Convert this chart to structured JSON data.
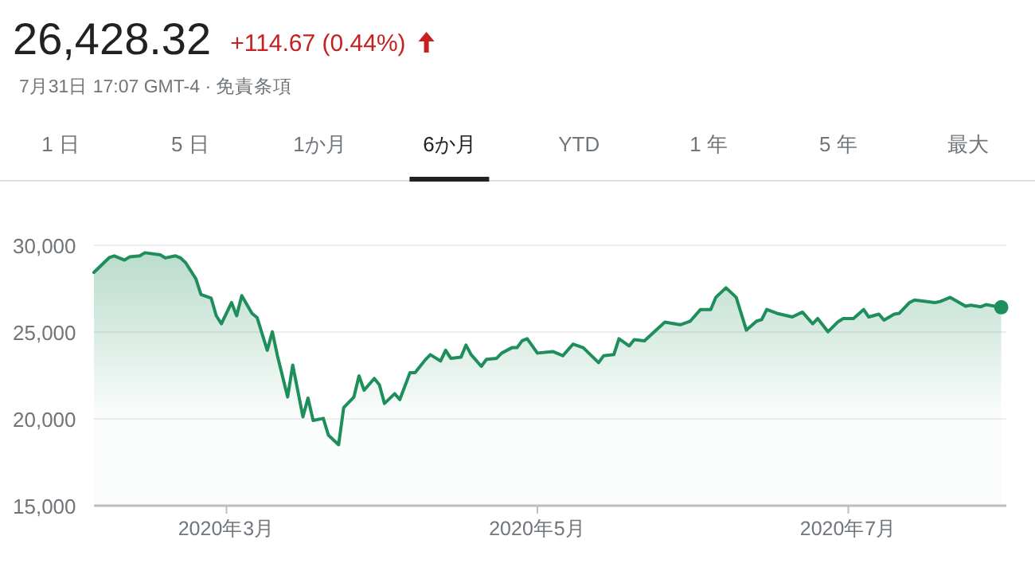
{
  "chart_data": {
    "type": "area",
    "title": "26,428.32",
    "subtitle": "+114.67 (0.44%)",
    "annotations": [
      "7月31日 17:07 GMT-4 · 免責条項",
      "1 日",
      "5 日",
      "1か月",
      "6か月",
      "YTD",
      "1 年",
      "5 年",
      "最大"
    ],
    "x": [
      "2020-02-04",
      "2020-02-07",
      "2020-02-08",
      "2020-02-10",
      "2020-02-11",
      "2020-02-13",
      "2020-02-14",
      "2020-02-17",
      "2020-02-18",
      "2020-02-20",
      "2020-02-21",
      "2020-02-22",
      "2020-02-24",
      "2020-02-25",
      "2020-02-27",
      "2020-02-28",
      "2020-02-29",
      "2020-03-02",
      "2020-03-03",
      "2020-03-04",
      "2020-03-06",
      "2020-03-07",
      "2020-03-09",
      "2020-03-10",
      "2020-03-11",
      "2020-03-13",
      "2020-03-14",
      "2020-03-16",
      "2020-03-17",
      "2020-03-18",
      "2020-03-20",
      "2020-03-21",
      "2020-03-23",
      "2020-03-24",
      "2020-03-26",
      "2020-03-27",
      "2020-03-28",
      "2020-03-30",
      "2020-03-31",
      "2020-04-01",
      "2020-04-03",
      "2020-04-04",
      "2020-04-06",
      "2020-04-07",
      "2020-04-09",
      "2020-04-10",
      "2020-04-12",
      "2020-04-13",
      "2020-04-14",
      "2020-04-16",
      "2020-04-17",
      "2020-04-18",
      "2020-04-20",
      "2020-04-21",
      "2020-04-23",
      "2020-04-24",
      "2020-04-26",
      "2020-04-27",
      "2020-04-28",
      "2020-04-29",
      "2020-05-01",
      "2020-05-04",
      "2020-05-06",
      "2020-05-08",
      "2020-05-10",
      "2020-05-13",
      "2020-05-14",
      "2020-05-16",
      "2020-05-17",
      "2020-05-19",
      "2020-05-20",
      "2020-05-22",
      "2020-05-26",
      "2020-05-29",
      "2020-05-31",
      "2020-06-02",
      "2020-06-04",
      "2020-06-05",
      "2020-06-07",
      "2020-06-09",
      "2020-06-11",
      "2020-06-13",
      "2020-06-14",
      "2020-06-15",
      "2020-06-17",
      "2020-06-20",
      "2020-06-22",
      "2020-06-24",
      "2020-06-25",
      "2020-06-27",
      "2020-06-29",
      "2020-06-30",
      "2020-07-02",
      "2020-07-04",
      "2020-07-05",
      "2020-07-07",
      "2020-07-08",
      "2020-07-10",
      "2020-07-11",
      "2020-07-13",
      "2020-07-14",
      "2020-07-18",
      "2020-07-19",
      "2020-07-21",
      "2020-07-24",
      "2020-07-25",
      "2020-07-27",
      "2020-07-28",
      "2020-07-31"
    ],
    "series": [
      {
        "color": "#1e8e5a",
        "values": [
          28440,
          29290,
          29390,
          29150,
          29330,
          29390,
          29570,
          29450,
          29270,
          29390,
          29270,
          28990,
          28070,
          27160,
          26950,
          25940,
          25480,
          26700,
          25940,
          27100,
          26080,
          25840,
          23950,
          25020,
          23640,
          21260,
          23100,
          20120,
          21200,
          19910,
          20030,
          19060,
          18510,
          20650,
          21260,
          22480,
          21650,
          22330,
          21960,
          20890,
          21450,
          21110,
          22660,
          22660,
          23400,
          23700,
          23330,
          23950,
          23490,
          23550,
          24250,
          23700,
          23030,
          23430,
          23490,
          23790,
          24100,
          24100,
          24500,
          24620,
          23790,
          23880,
          23640,
          24310,
          24100,
          23240,
          23640,
          23700,
          24620,
          24200,
          24560,
          24500,
          25570,
          25420,
          25630,
          26300,
          26300,
          27000,
          27550,
          27000,
          25110,
          25630,
          25720,
          26300,
          26080,
          25870,
          26150,
          25480,
          25780,
          25020,
          25600,
          25780,
          25780,
          26300,
          25870,
          26030,
          25690,
          26030,
          26080,
          26700,
          26850,
          26700,
          26760,
          27000,
          26490,
          26550,
          26460,
          26580,
          26428
        ]
      }
    ],
    "xlim": [
      "2020-02-04",
      "2020-08-01"
    ],
    "xticks": [
      {
        "value": "2020-03-01",
        "label": "2020年3月"
      },
      {
        "value": "2020-05-01",
        "label": "2020年5月"
      },
      {
        "value": "2020-07-01",
        "label": "2020年7月"
      }
    ],
    "ylim": [
      15000,
      30000
    ],
    "yticks": [
      {
        "value": 15000,
        "label": "15,000"
      },
      {
        "value": 20000,
        "label": "20,000"
      },
      {
        "value": 25000,
        "label": "25,000"
      },
      {
        "value": 30000,
        "label": "30,000"
      }
    ],
    "grid": "y"
  }
}
